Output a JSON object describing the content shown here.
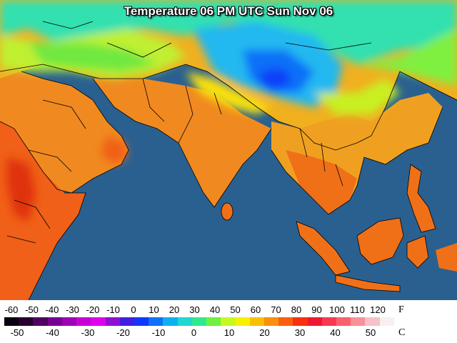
{
  "title": "Temperature 06 PM UTC Sun Nov 06",
  "legend": {
    "fahrenheit_unit": "F",
    "celsius_unit": "C",
    "fahrenheit_ticks": [
      "-60",
      "-50",
      "-40",
      "-30",
      "-20",
      "-10",
      "0",
      "10",
      "20",
      "30",
      "40",
      "50",
      "60",
      "70",
      "80",
      "90",
      "100",
      "110",
      "120"
    ],
    "celsius_ticks": [
      "-50",
      "-40",
      "-30",
      "-20",
      "-10",
      "0",
      "10",
      "20",
      "30",
      "40",
      "50"
    ],
    "colors": [
      "#0a0010",
      "#280030",
      "#500060",
      "#780090",
      "#a000b8",
      "#c800d8",
      "#e000f0",
      "#9010d0",
      "#4020e0",
      "#1038f8",
      "#1070f8",
      "#10b0f0",
      "#20d8d0",
      "#30e890",
      "#70f040",
      "#c8f820",
      "#f8f000",
      "#f8c000",
      "#f89010",
      "#f86010",
      "#f83010",
      "#f01830",
      "#f83850",
      "#f86070",
      "#f89098",
      "#f8c0c8",
      "#f8f0f0"
    ]
  },
  "map": {
    "ocean_color": "#2a6090",
    "border_color": "#000000",
    "region": "Middle East, South Asia, Southeast Asia"
  }
}
